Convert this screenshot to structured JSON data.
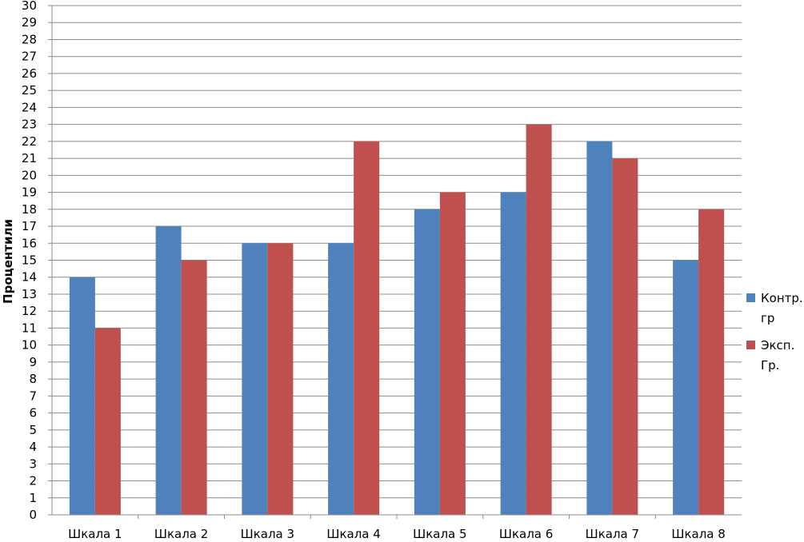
{
  "chart_data": {
    "type": "bar",
    "title": "",
    "xlabel": "",
    "ylabel": "Процентили",
    "ylim": [
      0,
      30
    ],
    "ytick_step": 1,
    "grid": true,
    "legend_position": "right",
    "categories": [
      "Шкала 1",
      "Шкала 2",
      "Шкала 3",
      "Шкала 4",
      "Шкала 5",
      "Шкала 6",
      "Шкала 7",
      "Шкала 8"
    ],
    "series": [
      {
        "name": "Контр. гр",
        "name_lines": [
          "Контр.",
          "гр"
        ],
        "color": "#4f81bd",
        "values": [
          14,
          17,
          16,
          16,
          18,
          19,
          22,
          15
        ]
      },
      {
        "name": "Эксп. Гр.",
        "name_lines": [
          "Эксп.",
          "Гр."
        ],
        "color": "#c0504d",
        "values": [
          11,
          15,
          16,
          22,
          19,
          23,
          21,
          18
        ]
      }
    ]
  }
}
